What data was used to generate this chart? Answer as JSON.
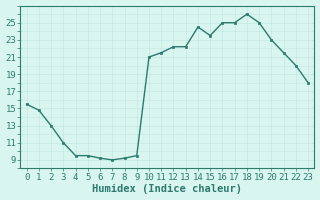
{
  "x": [
    0,
    1,
    2,
    3,
    4,
    5,
    6,
    7,
    8,
    9,
    10,
    11,
    12,
    13,
    14,
    15,
    16,
    17,
    18,
    19,
    20,
    21,
    22,
    23
  ],
  "y": [
    15.5,
    14.8,
    13.0,
    11.0,
    9.5,
    9.5,
    9.2,
    9.0,
    9.2,
    9.5,
    21.0,
    21.5,
    22.2,
    22.2,
    24.5,
    23.5,
    25.0,
    25.0,
    26.0,
    25.0,
    23.0,
    21.5,
    20.0,
    18.0
  ],
  "line_color": "#2d7a6e",
  "marker_color": "#2d7a6e",
  "bg_color": "#d8f5f0",
  "grid_color_major": "#c4e8e2",
  "grid_color_minor": "#d0f0ea",
  "xlabel": "Humidex (Indice chaleur)",
  "xlabel_fontsize": 7.5,
  "ylabel_ticks": [
    9,
    11,
    13,
    15,
    17,
    19,
    21,
    23,
    25
  ],
  "xlim": [
    -0.5,
    23.5
  ],
  "ylim": [
    8.0,
    27.0
  ],
  "xtick_labels": [
    "0",
    "1",
    "2",
    "3",
    "4",
    "5",
    "6",
    "7",
    "8",
    "9",
    "10",
    "11",
    "12",
    "13",
    "14",
    "15",
    "16",
    "17",
    "18",
    "19",
    "20",
    "21",
    "22",
    "23"
  ],
  "tick_fontsize": 6.5,
  "figsize": [
    3.2,
    2.0
  ],
  "dpi": 100
}
